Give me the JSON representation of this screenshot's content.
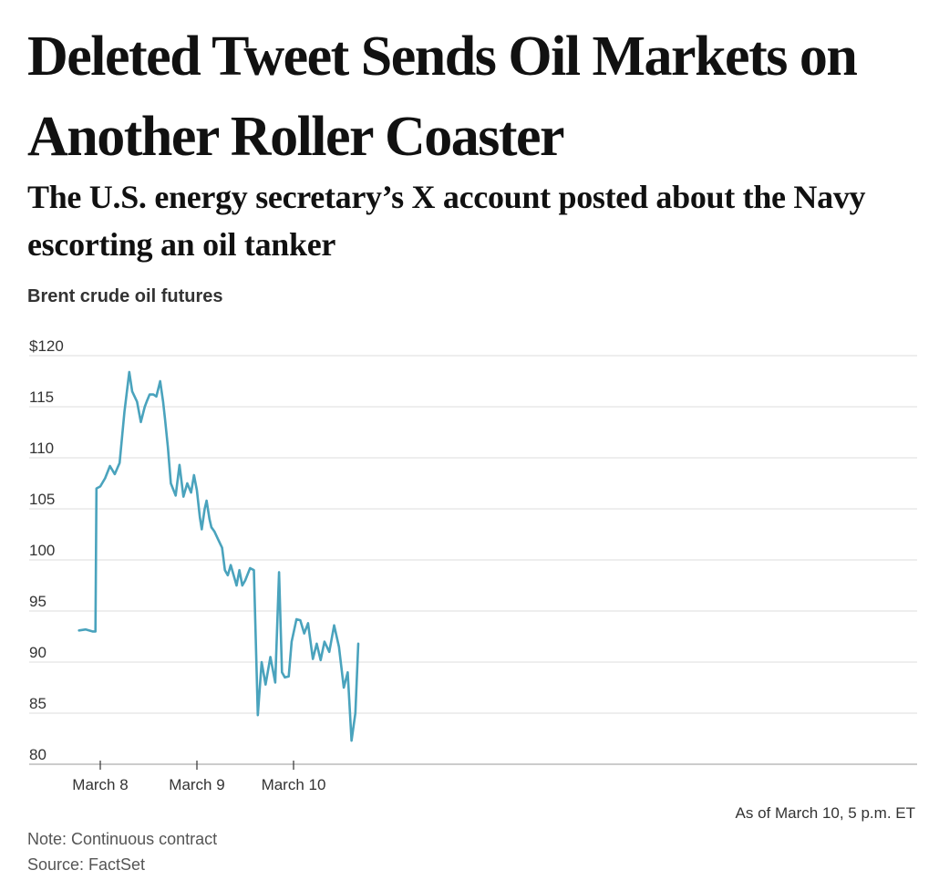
{
  "headline": "Deleted Tweet Sends Oil Markets on Another Roller Coaster",
  "deck": "The U.S. energy secretary’s X account posted about the Navy escorting an oil tanker",
  "chart_label": "Brent crude oil futures",
  "as_of": "As of March 10, 5 p.m. ET",
  "note": "Note: Continuous contract",
  "source": "Source: FactSet",
  "colors": {
    "line": "#4aa3bd",
    "grid": "#dddddd",
    "text": "#111111"
  },
  "chart_data": {
    "type": "line",
    "title": "Brent crude oil futures",
    "ylim": [
      80,
      120
    ],
    "yticks": [
      {
        "value": 120,
        "label": "$120"
      },
      {
        "value": 115,
        "label": "115"
      },
      {
        "value": 110,
        "label": "110"
      },
      {
        "value": 105,
        "label": "105"
      },
      {
        "value": 100,
        "label": "100"
      },
      {
        "value": 95,
        "label": "95"
      },
      {
        "value": 90,
        "label": "90"
      },
      {
        "value": 85,
        "label": "85"
      },
      {
        "value": 80,
        "label": "80"
      }
    ],
    "xlim": [
      -0.22,
      2.67
    ],
    "xticks": [
      {
        "value": 0,
        "label": "March 8"
      },
      {
        "value": 1,
        "label": "March 9"
      },
      {
        "value": 2,
        "label": "March 10"
      }
    ],
    "grid": true,
    "legend": "none",
    "series": [
      {
        "x": [
          -0.22,
          -0.15,
          -0.08,
          -0.05,
          -0.04,
          0.0,
          0.05,
          0.1,
          0.15,
          0.2,
          0.25,
          0.3,
          0.33,
          0.38,
          0.42,
          0.46,
          0.48,
          0.51,
          0.55,
          0.58,
          0.62,
          0.65,
          0.67,
          0.7,
          0.73,
          0.78,
          0.82,
          0.86,
          0.9,
          0.94,
          0.97,
          1.0,
          1.03,
          1.05,
          1.08,
          1.1,
          1.13,
          1.15,
          1.18,
          1.22,
          1.26,
          1.29,
          1.32,
          1.35,
          1.38,
          1.41,
          1.44,
          1.47,
          1.5,
          1.55,
          1.59,
          1.63,
          1.67,
          1.71,
          1.76,
          1.81,
          1.85,
          1.88,
          1.91,
          1.95,
          1.98,
          2.03,
          2.07,
          2.11,
          2.15,
          2.2,
          2.24,
          2.28,
          2.32,
          2.37,
          2.42,
          2.47,
          2.52,
          2.56,
          2.6,
          2.64,
          2.67
        ],
        "y": [
          93.1,
          93.2,
          93.0,
          93.0,
          107.0,
          107.2,
          108.0,
          109.2,
          108.4,
          109.5,
          114.5,
          118.4,
          116.5,
          115.5,
          113.5,
          115.0,
          115.5,
          116.2,
          116.2,
          116.0,
          117.5,
          115.5,
          113.8,
          111.0,
          107.5,
          106.3,
          109.3,
          106.2,
          107.5,
          106.6,
          108.3,
          106.8,
          104.2,
          103.0,
          105.0,
          105.8,
          104.0,
          103.2,
          102.8,
          102.0,
          101.2,
          99.0,
          98.5,
          99.5,
          98.5,
          97.5,
          99.0,
          97.5,
          98.0,
          99.2,
          99.0,
          84.8,
          90.0,
          87.8,
          90.5,
          88.0,
          98.8,
          89.0,
          88.5,
          88.6,
          92.0,
          94.2,
          94.1,
          92.8,
          93.8,
          90.3,
          91.8,
          90.2,
          92.0,
          91.0,
          93.6,
          91.5,
          87.5,
          89.0,
          82.3,
          85.0,
          91.8
        ]
      }
    ]
  }
}
